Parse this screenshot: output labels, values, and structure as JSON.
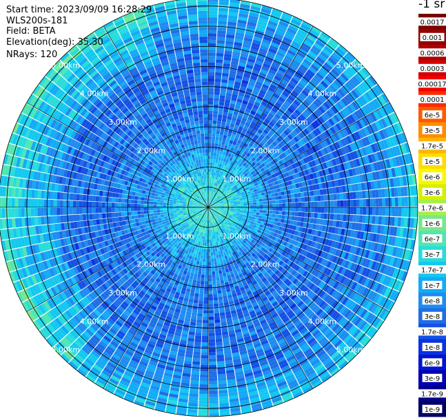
{
  "info": {
    "start_time": "Start time: 2023/09/09 16:28:29",
    "instrument": "WLS200s-181",
    "field": "Field: BETA",
    "elevation": "Elevation(deg): 35.30",
    "nrays": "NRays: 120"
  },
  "units": "-1 sr",
  "chart_data": {
    "type": "heatmap",
    "subtype": "polar-ppi",
    "field": "BETA",
    "nrays": 120,
    "elevation_deg": 35.3,
    "range_rings": [
      {
        "km": 1,
        "label": "1.00km"
      },
      {
        "km": 2,
        "label": "2.00km"
      },
      {
        "km": 3,
        "label": "3.00km"
      },
      {
        "km": 4,
        "label": "4.00km"
      },
      {
        "km": 5,
        "label": "5.00km"
      }
    ],
    "max_range_km": 5.2,
    "colorbar": {
      "scale": "log",
      "labels": [
        "0.0017",
        "0.001",
        "0.0006",
        "0.0003",
        "0.00017",
        "0.0001",
        "6e-5",
        "3e-5",
        "1.7e-5",
        "1e-5",
        "6e-6",
        "3e-6",
        "1.7e-6",
        "1e-6",
        "6e-7",
        "3e-7",
        "1.7e-7",
        "1e-7",
        "6e-8",
        "3e-8",
        "1.7e-8",
        "1e-8",
        "6e-9",
        "3e-9",
        "1.7e-9",
        "1e-9"
      ],
      "colors": [
        "#7a0000",
        "#960000",
        "#b00000",
        "#d40000",
        "#f00000",
        "#ff2a00",
        "#ff5a00",
        "#ff8c00",
        "#ffb400",
        "#ffdc00",
        "#f8f800",
        "#d4f000",
        "#a6f046",
        "#78e68c",
        "#50e6b4",
        "#28dcdc",
        "#14c8f0",
        "#14aaf5",
        "#1e8cf0",
        "#1e6ee6",
        "#1450e6",
        "#0a32e1",
        "#0014d2",
        "#0000b4",
        "#00008c",
        "#000064"
      ]
    },
    "sample_values_by_range_km": [
      {
        "range_km": 0.5,
        "beta": "3e-7"
      },
      {
        "range_km": 1.5,
        "beta": "6e-8"
      },
      {
        "range_km": 2.5,
        "beta": "3e-8"
      },
      {
        "range_km": 3.5,
        "beta": "3e-8"
      },
      {
        "range_km": 4.5,
        "beta": "6e-8"
      },
      {
        "range_km": 5.1,
        "beta": "1.7e-7"
      }
    ]
  }
}
